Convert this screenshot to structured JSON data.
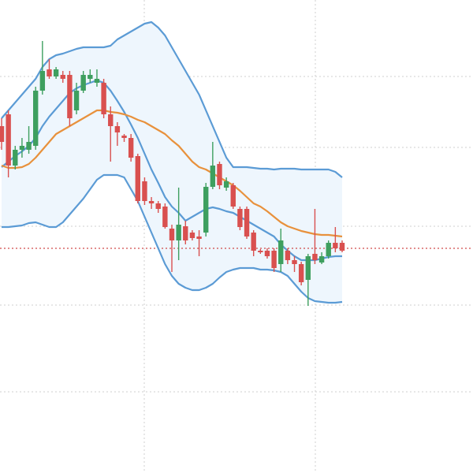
{
  "chart_data": {
    "type": "candlestick",
    "categories": [
      null,
      null,
      null,
      null,
      null,
      null,
      null,
      null,
      null,
      null,
      null,
      null,
      null,
      null,
      null,
      null,
      null,
      null,
      null,
      null,
      null,
      null,
      null,
      null,
      null,
      null,
      null,
      null,
      null,
      null,
      null,
      null,
      null,
      null,
      null,
      null,
      null,
      null,
      null,
      null,
      null,
      null,
      null,
      null,
      null,
      null,
      null,
      null,
      null,
      null,
      null
    ],
    "open": [
      440,
      455,
      390,
      410,
      410,
      415,
      485,
      512,
      503,
      505,
      505,
      460,
      485,
      500,
      495,
      495,
      455,
      440,
      428,
      425,
      402,
      370,
      345,
      342,
      338,
      310,
      295,
      313,
      305,
      300,
      305,
      363,
      392,
      362,
      365,
      335,
      335,
      305,
      282,
      282,
      282,
      265,
      282,
      270,
      265,
      245,
      278,
      267,
      275,
      292,
      292
    ],
    "close": [
      420,
      390,
      410,
      415,
      420,
      485,
      510,
      503,
      512,
      500,
      450,
      485,
      505,
      505,
      500,
      455,
      440,
      432,
      425,
      400,
      345,
      345,
      342,
      335,
      312,
      295,
      315,
      295,
      298,
      297,
      363,
      390,
      365,
      370,
      338,
      312,
      300,
      282,
      280,
      275,
      260,
      295,
      270,
      265,
      242,
      275,
      270,
      275,
      292,
      285,
      282
    ],
    "high": [
      450,
      460,
      415,
      425,
      440,
      490,
      548,
      525,
      515,
      510,
      510,
      495,
      510,
      512,
      512,
      500,
      465,
      445,
      430,
      430,
      405,
      375,
      350,
      345,
      342,
      315,
      362,
      320,
      308,
      308,
      368,
      420,
      395,
      375,
      368,
      338,
      338,
      308,
      284,
      285,
      285,
      310,
      285,
      275,
      268,
      278,
      335,
      280,
      295,
      312,
      295
    ],
    "low": [
      410,
      375,
      385,
      400,
      405,
      410,
      480,
      500,
      500,
      495,
      440,
      455,
      482,
      495,
      490,
      450,
      395,
      415,
      420,
      395,
      342,
      340,
      335,
      330,
      310,
      255,
      270,
      290,
      295,
      275,
      300,
      360,
      360,
      358,
      335,
      308,
      297,
      275,
      278,
      272,
      255,
      255,
      265,
      255,
      238,
      212,
      265,
      265,
      272,
      280,
      280
    ],
    "up_color": "#3e9f5f",
    "down_color": "#d9504f",
    "lines": [
      {
        "color": "#5b9bd5",
        "values": [
          450,
          460,
          470,
          480,
          490,
          500,
          515,
          525,
          530,
          532,
          535,
          538,
          540,
          540,
          540,
          540,
          542,
          550,
          555,
          560,
          565,
          570,
          572,
          565,
          555,
          540,
          525,
          510,
          495,
          480,
          460,
          440,
          420,
          400,
          388,
          388,
          388,
          387,
          386,
          386,
          385,
          386,
          386,
          386,
          385,
          385,
          385,
          385,
          385,
          382,
          375
        ]
      },
      {
        "color": "#5b9bd5",
        "values": [
          388,
          395,
          402,
          408,
          415,
          425,
          440,
          452,
          462,
          472,
          482,
          488,
          492,
          495,
          498,
          495,
          485,
          472,
          458,
          442,
          425,
          405,
          385,
          368,
          350,
          338,
          330,
          320,
          325,
          330,
          335,
          337,
          335,
          332,
          330,
          325,
          320,
          315,
          310,
          305,
          300,
          290,
          282,
          275,
          270,
          270,
          270,
          272,
          274,
          275,
          275
        ]
      },
      {
        "color": "#e8913c",
        "values": [
          390,
          387,
          387,
          388,
          392,
          400,
          410,
          420,
          430,
          435,
          440,
          445,
          450,
          455,
          460,
          460,
          458,
          457,
          455,
          452,
          448,
          445,
          440,
          435,
          430,
          422,
          415,
          405,
          395,
          388,
          385,
          380,
          375,
          370,
          365,
          358,
          350,
          342,
          338,
          332,
          325,
          318,
          313,
          310,
          307,
          305,
          303,
          302,
          302,
          301,
          300
        ]
      },
      {
        "color": "#5b9bd5",
        "values": [
          312,
          312,
          313,
          314,
          317,
          318,
          315,
          312,
          312,
          318,
          328,
          338,
          348,
          360,
          372,
          378,
          378,
          378,
          375,
          360,
          345,
          325,
          305,
          285,
          265,
          250,
          240,
          235,
          232,
          232,
          235,
          240,
          248,
          255,
          258,
          260,
          260,
          260,
          258,
          258,
          257,
          255,
          250,
          240,
          230,
          222,
          218,
          217,
          216,
          216,
          217
        ]
      }
    ],
    "band_fill": "#eef6fd",
    "price_line": {
      "value": 285,
      "color": "#d04a4a"
    },
    "ylim": [
      0,
      600
    ],
    "yticks": [
      103,
      213,
      313,
      413,
      503
    ],
    "grid": true
  }
}
